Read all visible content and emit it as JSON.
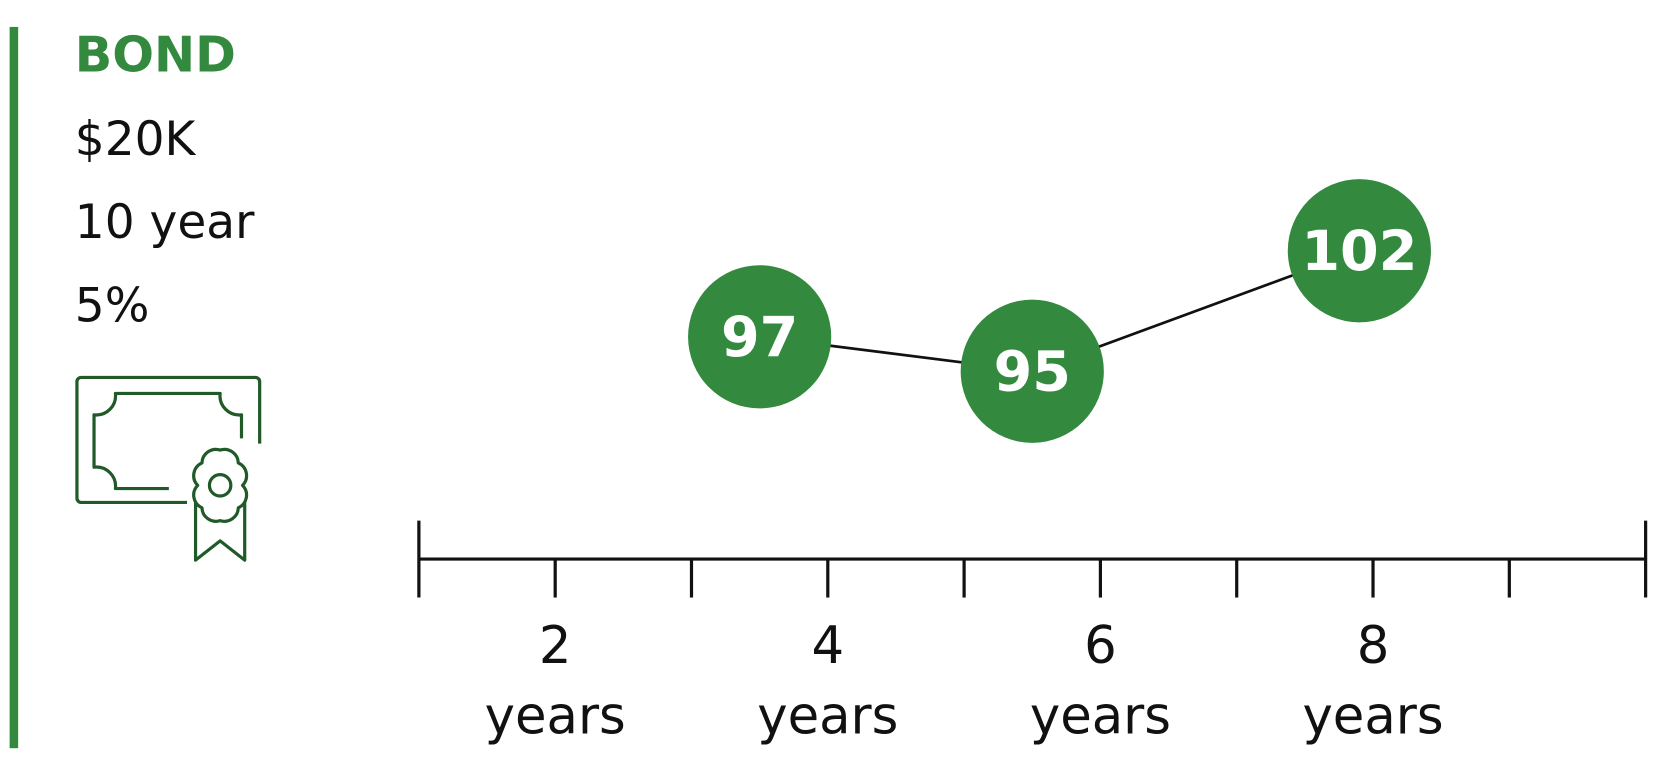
{
  "chart_data": {
    "type": "line",
    "title": "BOND",
    "details": [
      "$20K",
      "10 year",
      "5%"
    ],
    "color": "#338a3e",
    "xlim": [
      1,
      10
    ],
    "xticks": [
      {
        "value": 2,
        "label": "2 years"
      },
      {
        "value": 4,
        "label": "4 years"
      },
      {
        "value": 6,
        "label": "6 years"
      },
      {
        "value": 8,
        "label": "8 years"
      }
    ],
    "xminorticks": [
      1,
      3,
      5,
      7,
      9,
      10
    ],
    "ylim": [
      88,
      106
    ],
    "series": [
      {
        "name": null,
        "color": "#338a3e",
        "x": [
          3.5,
          5.5,
          7.9
        ],
        "values": [
          97,
          95,
          102
        ]
      }
    ]
  }
}
